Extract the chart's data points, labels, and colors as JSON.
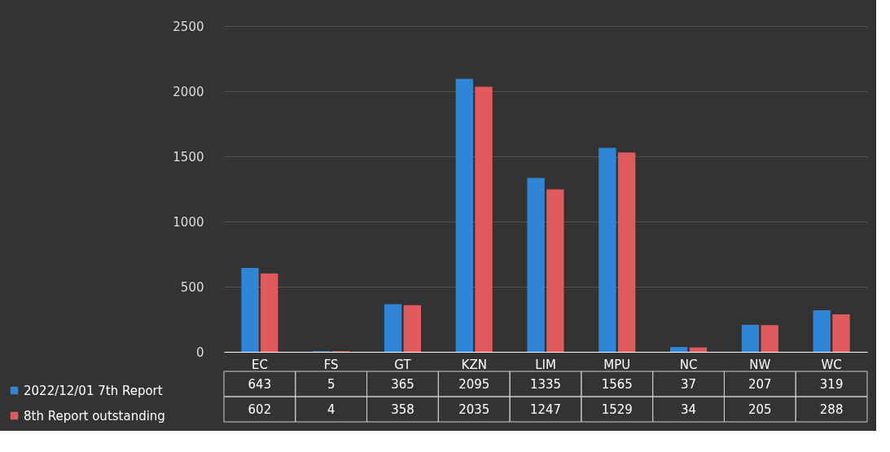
{
  "chart_data": {
    "type": "bar",
    "categories": [
      "EC",
      "FS",
      "GT",
      "KZN",
      "LIM",
      "MPU",
      "NC",
      "NW",
      "WC"
    ],
    "series": [
      {
        "name": "2022/12/01 7th Report",
        "color": "#2f86d6",
        "values": [
          643,
          5,
          365,
          2095,
          1335,
          1565,
          37,
          207,
          319
        ]
      },
      {
        "name": "8th Report outstanding",
        "color": "#e05a5e",
        "values": [
          602,
          4,
          358,
          2035,
          1247,
          1529,
          34,
          205,
          288
        ]
      }
    ],
    "ylim": [
      0,
      2500
    ],
    "yticks": [
      0,
      500,
      {
        "value": 1000,
        "label": "1000"
      },
      {
        "value": 1500,
        "label": "1500"
      },
      {
        "value": 2000,
        "label": "2000"
      },
      {
        "value": 2500,
        "label": "2500"
      }
    ],
    "grid": "y",
    "legend": "bottom left",
    "data_labels": true
  }
}
